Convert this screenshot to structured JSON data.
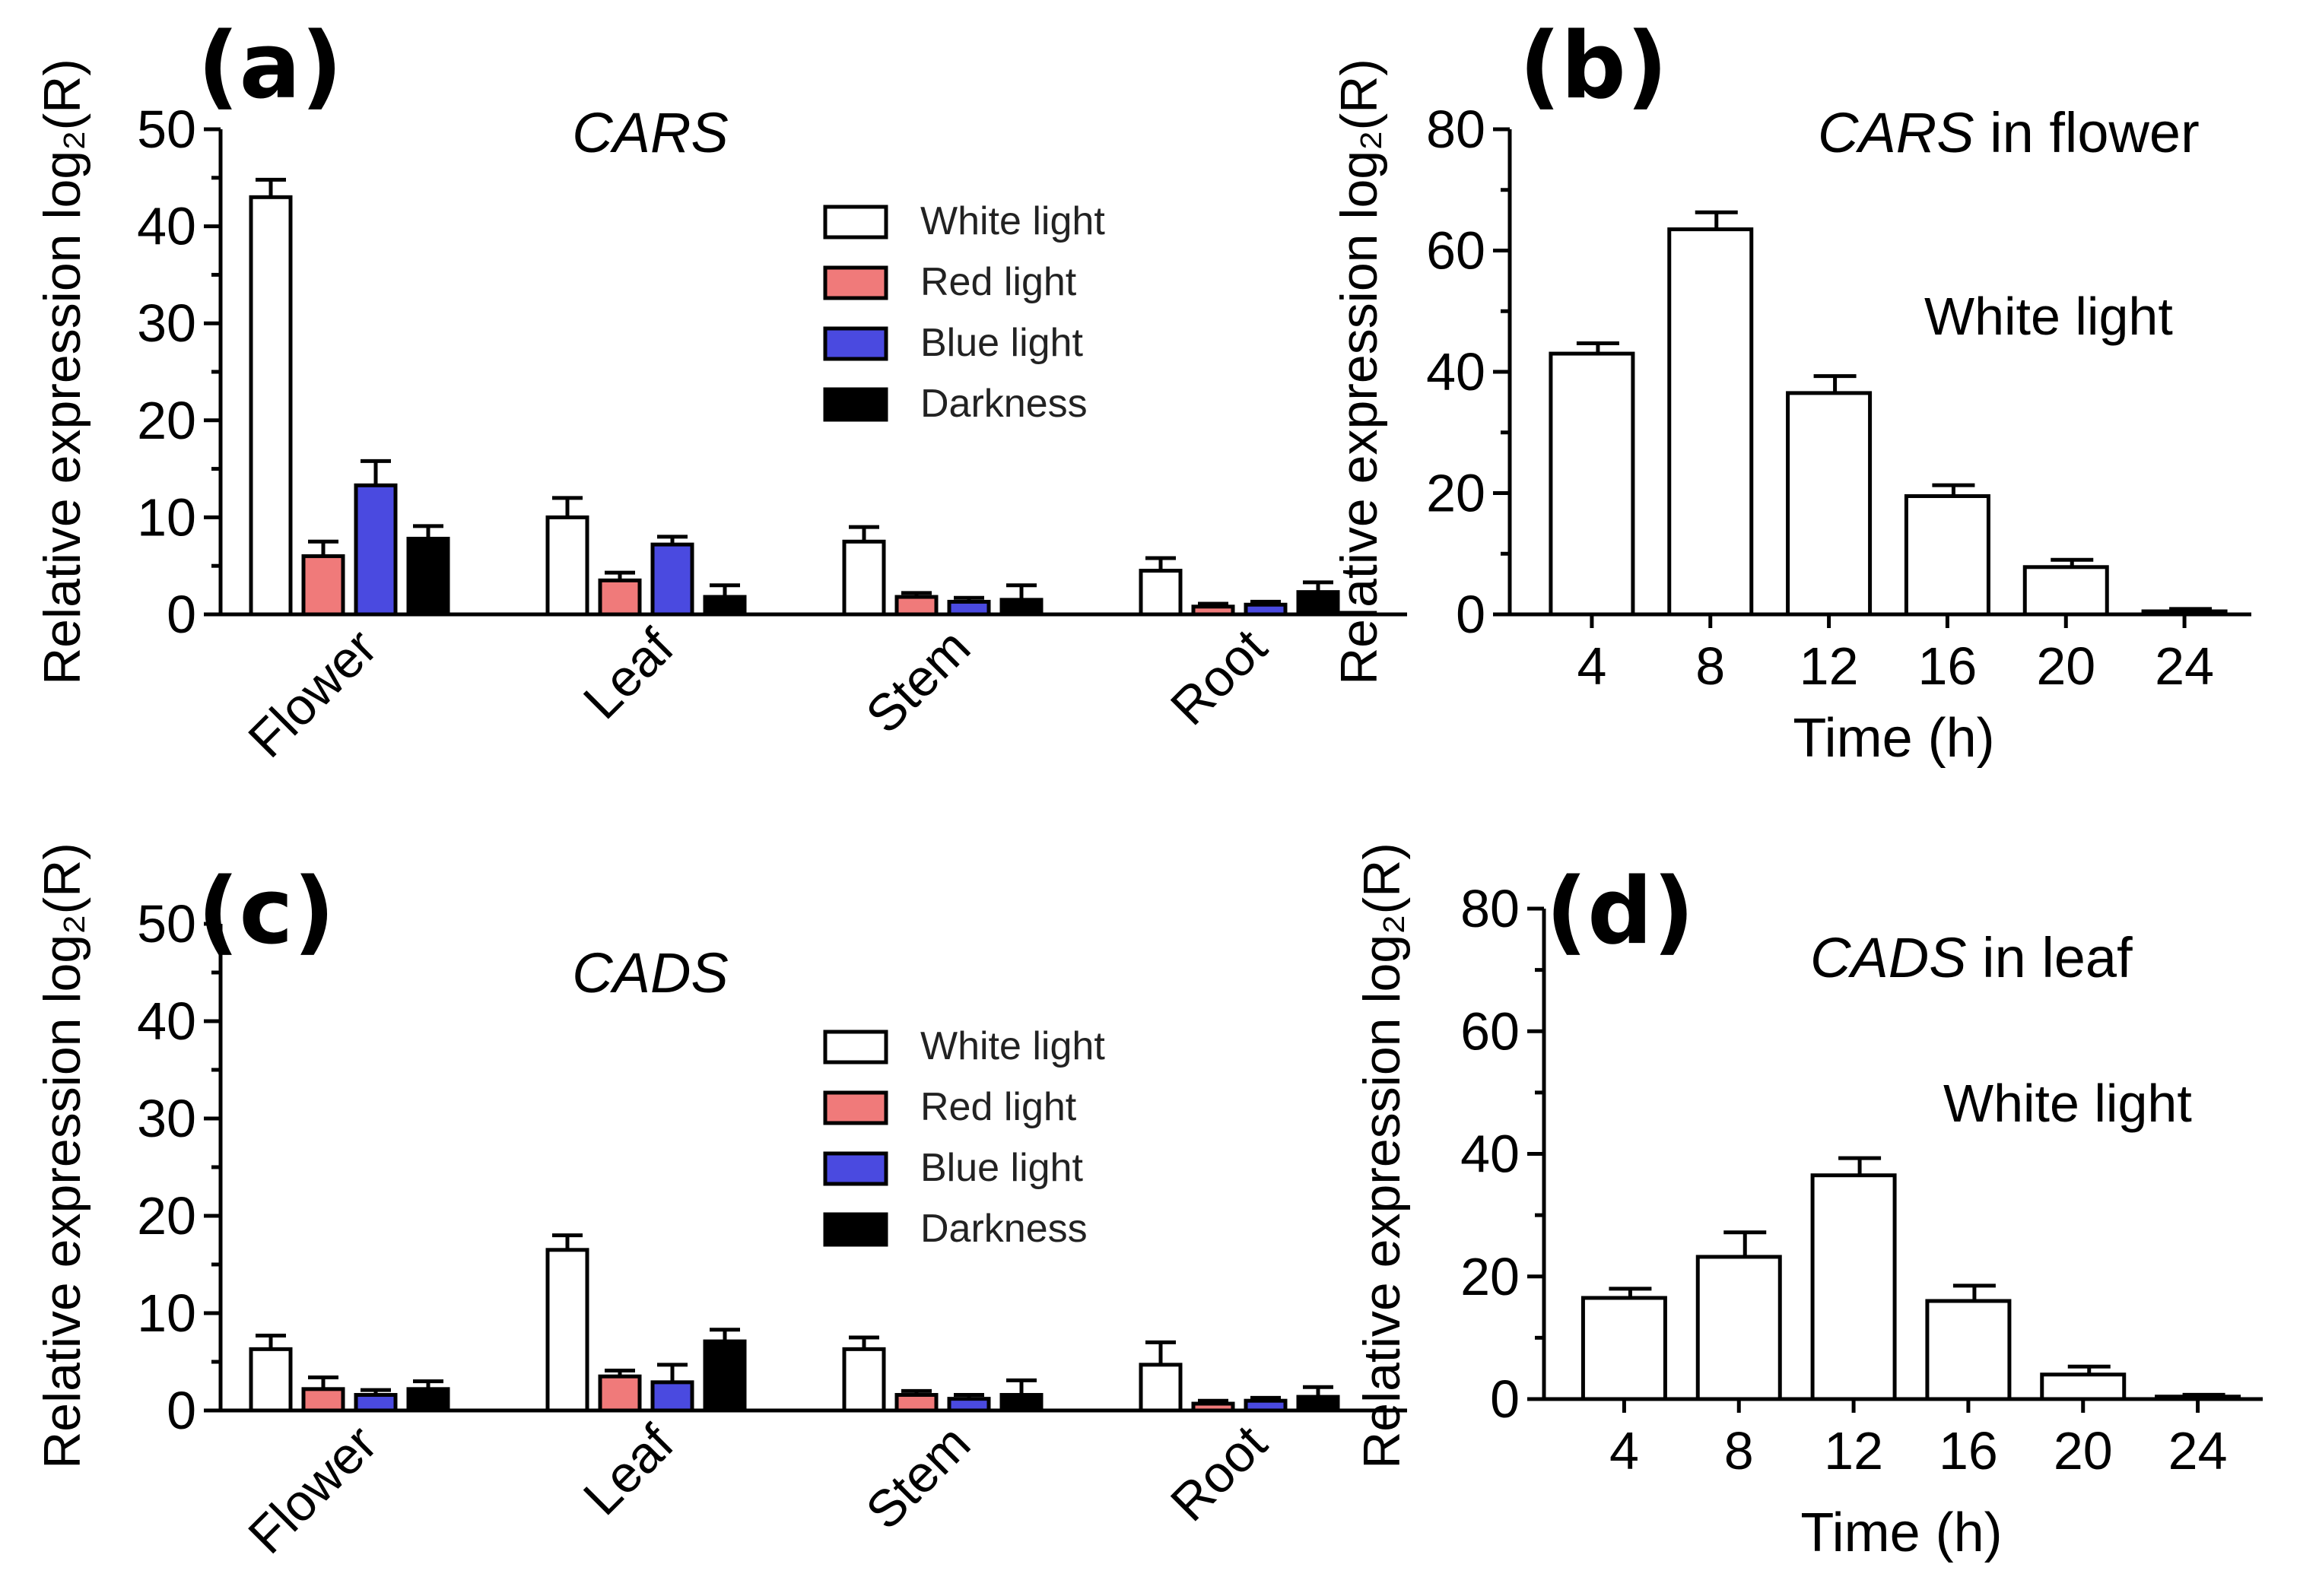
{
  "chart_data": [
    {
      "type": "bar",
      "panel": "(a)",
      "title": "CARS",
      "ylabel": "Relative expression log₂(R)",
      "xlabel": "",
      "ylim": [
        0,
        50
      ],
      "yticks": [
        0,
        10,
        20,
        30,
        40,
        50
      ],
      "categories": [
        "Flower",
        "Leaf",
        "Stem",
        "Root"
      ],
      "series": [
        {
          "name": "White light",
          "color": "#ffffff",
          "values": [
            43,
            10,
            7.5,
            4.5
          ],
          "errors": [
            1.8,
            2.0,
            1.5,
            1.3
          ]
        },
        {
          "name": "Red light",
          "color": "#f07a7a",
          "values": [
            6,
            3.5,
            1.8,
            0.8
          ],
          "errors": [
            1.5,
            0.8,
            0.4,
            0.3
          ]
        },
        {
          "name": "Blue light",
          "color": "#4a4ae0",
          "values": [
            13.3,
            7.2,
            1.3,
            1.0
          ],
          "errors": [
            2.5,
            0.8,
            0.4,
            0.3
          ]
        },
        {
          "name": "Darkness",
          "color": "#000000",
          "values": [
            7.8,
            1.8,
            1.5,
            2.3
          ],
          "errors": [
            1.3,
            1.2,
            1.5,
            1.0
          ]
        }
      ],
      "legend": "top-right"
    },
    {
      "type": "bar",
      "panel": "(b)",
      "title_gene": "CARS",
      "title_rest": " in flower",
      "annotation": "White light",
      "ylabel": "Relative expression log₂(R)",
      "xlabel": "Time (h)",
      "ylim": [
        0,
        80
      ],
      "yticks": [
        0,
        20,
        40,
        60,
        80
      ],
      "categories": [
        "4",
        "8",
        "12",
        "16",
        "20",
        "24"
      ],
      "values": [
        43,
        63.5,
        36.5,
        19.5,
        7.8,
        0.5
      ],
      "errors": [
        1.7,
        2.8,
        2.8,
        1.8,
        1.2,
        0.4
      ]
    },
    {
      "type": "bar",
      "panel": "(c)",
      "title": "CADS",
      "ylabel": "Relative expression log₂(R)",
      "xlabel": "",
      "ylim": [
        0,
        50
      ],
      "yticks": [
        0,
        10,
        20,
        30,
        40,
        50
      ],
      "categories": [
        "Flower",
        "Leaf",
        "Stem",
        "Root"
      ],
      "series": [
        {
          "name": "White light",
          "color": "#ffffff",
          "values": [
            6.3,
            16.5,
            6.3,
            4.7
          ],
          "errors": [
            1.4,
            1.5,
            1.2,
            2.3
          ]
        },
        {
          "name": "Red light",
          "color": "#f07a7a",
          "values": [
            2.2,
            3.5,
            1.6,
            0.7
          ],
          "errors": [
            1.2,
            0.6,
            0.4,
            0.3
          ]
        },
        {
          "name": "Blue light",
          "color": "#4a4ae0",
          "values": [
            1.6,
            2.9,
            1.2,
            1.0
          ],
          "errors": [
            0.5,
            1.8,
            0.4,
            0.3
          ]
        },
        {
          "name": "Darkness",
          "color": "#000000",
          "values": [
            2.2,
            7.1,
            1.6,
            1.4
          ],
          "errors": [
            0.8,
            1.2,
            1.5,
            1.0
          ]
        }
      ],
      "legend": "top-right"
    },
    {
      "type": "bar",
      "panel": "(d)",
      "title_gene": "CADS",
      "title_rest": " in leaf",
      "annotation": "White light",
      "ylabel": "Relative expression log₂(R)",
      "xlabel": "Time (h)",
      "ylim": [
        0,
        80
      ],
      "yticks": [
        0,
        20,
        40,
        60,
        80
      ],
      "categories": [
        "4",
        "8",
        "12",
        "16",
        "20",
        "24"
      ],
      "values": [
        16.5,
        23.2,
        36.5,
        16,
        4,
        0.4
      ],
      "errors": [
        1.5,
        4.0,
        2.8,
        2.5,
        1.3,
        0.3
      ]
    }
  ]
}
